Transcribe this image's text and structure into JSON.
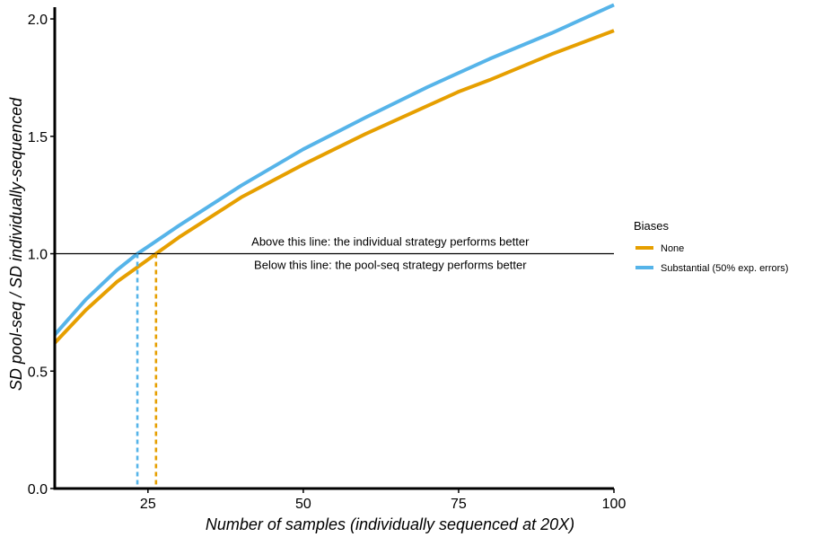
{
  "chart_data": {
    "type": "line",
    "xlabel": "Number of samples (individually sequenced at 20X)",
    "ylabel": "SD pool-seq / SD individually-sequenced",
    "xlim": [
      10,
      100
    ],
    "ylim": [
      0,
      2.05
    ],
    "x_ticks": [
      25,
      50,
      75,
      100
    ],
    "x_tick_labels": [
      "25",
      "50",
      "75",
      "100"
    ],
    "y_ticks": [
      0,
      0.5,
      1,
      1.5,
      2
    ],
    "y_tick_labels": [
      "0.0",
      "0.5",
      "1.0",
      "1.5",
      "2.0"
    ],
    "grid": false,
    "series": [
      {
        "name": "None",
        "color": "#E69F00",
        "x": [
          10,
          15,
          20,
          25,
          26.3,
          30,
          40,
          50,
          60,
          70,
          75,
          80,
          90,
          100
        ],
        "y": [
          0.62,
          0.76,
          0.88,
          0.975,
          1.0,
          1.07,
          1.24,
          1.38,
          1.51,
          1.63,
          1.69,
          1.74,
          1.85,
          1.95
        ]
      },
      {
        "name": "Substantial (50% exp. errors)",
        "color": "#56B4E9",
        "x": [
          10,
          15,
          20,
          23.3,
          25,
          30,
          40,
          50,
          60,
          70,
          75,
          80,
          90,
          100
        ],
        "y": [
          0.655,
          0.805,
          0.93,
          1.0,
          1.03,
          1.12,
          1.29,
          1.445,
          1.58,
          1.71,
          1.77,
          1.83,
          1.94,
          2.06
        ]
      }
    ],
    "reference_line": {
      "y": 1.0,
      "color": "#000000"
    },
    "crossings": [
      {
        "series": "None",
        "x": 26.3,
        "color": "#E69F00"
      },
      {
        "series": "Substantial (50% exp. errors)",
        "x": 23.3,
        "color": "#56B4E9"
      }
    ],
    "annotations": [
      {
        "text": "Above this line: the individual strategy performs better",
        "x": 64,
        "y": 1.05
      },
      {
        "text": "Below this line: the pool-seq strategy performs better",
        "x": 64,
        "y": 0.95
      }
    ],
    "legend": {
      "title": "Biases",
      "position": "right",
      "entries": [
        {
          "label": "None",
          "color": "#E69F00"
        },
        {
          "label": "Substantial (50% exp. errors)",
          "color": "#56B4E9"
        }
      ]
    }
  }
}
